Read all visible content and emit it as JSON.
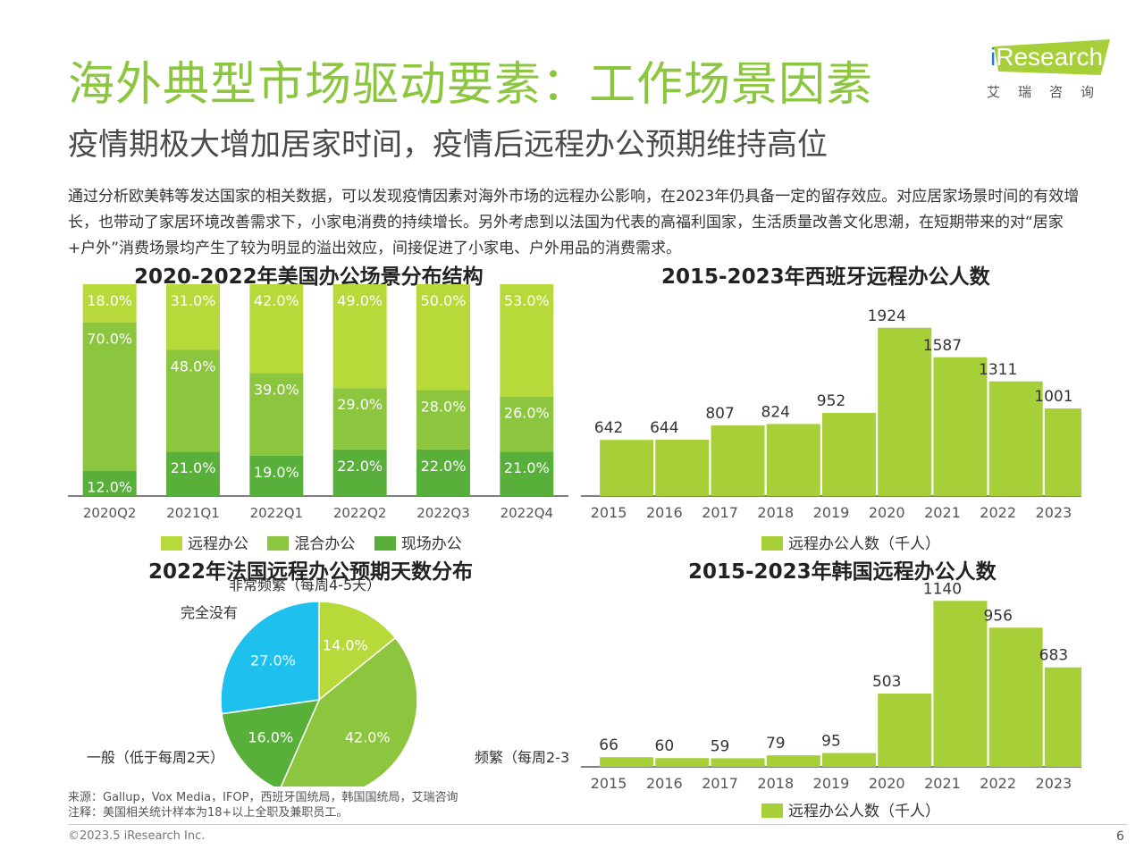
{
  "header": {
    "title": "海外典型市场驱动要素：工作场景因素",
    "subtitle": "疫情期极大增加居家时间，疫情后远程办公预期维持高位",
    "intro": "通过分析欧美韩等发达国家的相关数据，可以发现疫情因素对海外市场的远程办公影响，在2023年仍具备一定的留存效应。对应居家场景时间的有效增长，也带动了家居环境改善需求下，小家电消费的持续增长。另外考虑到以法国为代表的高福利国家，生活质量改善文化思潮，在短期带来的对“居家+户外”消费场景均产生了较为明显的溢出效应，间接促进了小家电、户外用品的消费需求。"
  },
  "logo": {
    "brand_i": "i",
    "brand_rest": "Research",
    "sub": "艾瑞咨询",
    "color": "#a6cf38"
  },
  "chart_data": [
    {
      "type": "bar",
      "stacked": true,
      "title": "2020-2022年美国办公场景分布结构",
      "categories": [
        "2020Q2",
        "2021Q1",
        "2022Q1",
        "2022Q2",
        "2022Q3",
        "2022Q4"
      ],
      "series": [
        {
          "name": "现场办公",
          "values": [
            12.0,
            21.0,
            19.0,
            22.0,
            22.0,
            21.0
          ],
          "labels": [
            "12.0%",
            "21.0%",
            "19.0%",
            "22.0%",
            "22.0%",
            "21.0%"
          ],
          "color": "#58b03a"
        },
        {
          "name": "混合办公",
          "values": [
            70.0,
            48.0,
            39.0,
            29.0,
            28.0,
            26.0
          ],
          "labels": [
            "70.0%",
            "48.0%",
            "39.0%",
            "29.0%",
            "28.0%",
            "26.0%"
          ],
          "color": "#8cc63f"
        },
        {
          "name": "远程办公",
          "values": [
            18.0,
            31.0,
            42.0,
            49.0,
            50.0,
            53.0
          ],
          "labels": [
            "18.0%",
            "31.0%",
            "42.0%",
            "49.0%",
            "50.0%",
            "53.0%"
          ],
          "color": "#b8d93a"
        }
      ],
      "legend_order": [
        "远程办公",
        "混合办公",
        "现场办公"
      ],
      "ylim": [
        0,
        100
      ]
    },
    {
      "type": "bar",
      "title": "2015-2023年西班牙远程办公人数",
      "categories": [
        "2015",
        "2016",
        "2017",
        "2018",
        "2019",
        "2020",
        "2021",
        "2022",
        "2023"
      ],
      "series": [
        {
          "name": "远程办公人数（千人）",
          "values": [
            642,
            644,
            807,
            824,
            952,
            1924,
            1587,
            1311,
            1001
          ],
          "color": "#a6cf38"
        }
      ],
      "ylim": [
        0,
        2300
      ]
    },
    {
      "type": "pie",
      "title": "2022年法国远程办公预期天数分布",
      "slices": [
        {
          "name": "非常频繁（每周4-5天）",
          "value": 14.0,
          "label": "14.0%",
          "color": "#b8d93a"
        },
        {
          "name": "频繁（每周2-3天）",
          "value": 42.0,
          "label": "42.0%",
          "color": "#8cc63f"
        },
        {
          "name": "一般（低于每周2天）",
          "value": 16.0,
          "label": "16.0%",
          "color": "#58b03a"
        },
        {
          "name": "完全没有",
          "value": 27.0,
          "label": "27.0%",
          "color": "#1ec0ee"
        }
      ]
    },
    {
      "type": "bar",
      "title": "2015-2023年韩国远程办公人数",
      "categories": [
        "2015",
        "2016",
        "2017",
        "2018",
        "2019",
        "2020",
        "2021",
        "2022",
        "2023"
      ],
      "series": [
        {
          "name": "远程办公人数（千人）",
          "values": [
            66,
            60,
            59,
            79,
            95,
            503,
            1140,
            956,
            683
          ],
          "color": "#a6cf38"
        }
      ],
      "ylim": [
        0,
        1240
      ]
    }
  ],
  "footer": {
    "source": "来源：Gallup，Vox Media，IFOP，西班牙国统局，韩国国统局，艾瑞咨询",
    "note": "注释：美国相关统计样本为18+以上全职及兼职员工。",
    "copyright": "©2023.5 iResearch Inc.",
    "page_number": "6"
  }
}
